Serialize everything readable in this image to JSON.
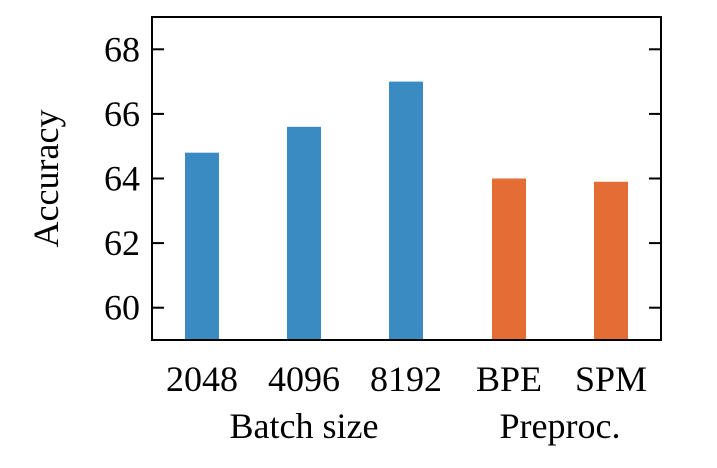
{
  "chart_data": {
    "type": "bar",
    "ylabel": "Accuracy",
    "ylim": [
      59,
      69
    ],
    "yticks": [
      60,
      62,
      64,
      66,
      68
    ],
    "grid": false,
    "categories": [
      "2048",
      "4096",
      "8192",
      "BPE",
      "SPM"
    ],
    "values": [
      64.8,
      65.6,
      67.0,
      64.0,
      63.9
    ],
    "groups": [
      {
        "label": "Batch size",
        "categories": [
          "2048",
          "4096",
          "8192"
        ],
        "color": "#3a8bc2"
      },
      {
        "label": "Preproc.",
        "categories": [
          "BPE",
          "SPM"
        ],
        "color": "#e36d35"
      }
    ]
  }
}
